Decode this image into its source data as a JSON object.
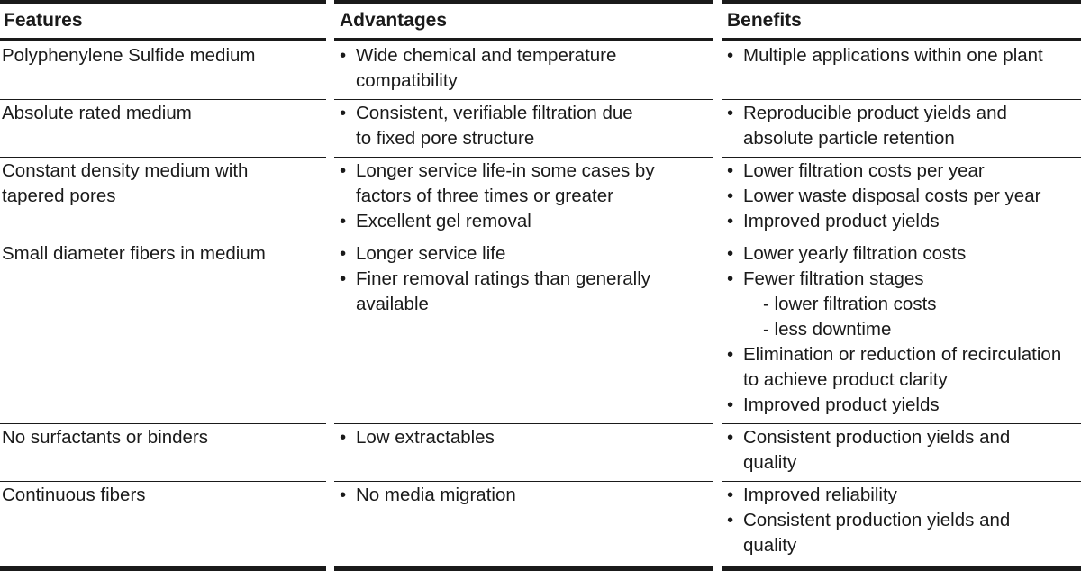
{
  "headers": {
    "features": "Features",
    "advantages": "Advantages",
    "benefits": "Benefits"
  },
  "rows": [
    {
      "feature": [
        "Polyphenylene Sulfide medium"
      ],
      "advantages": [
        [
          "Wide chemical and temperature",
          "compatibility"
        ]
      ],
      "benefits": [
        [
          "Multiple applications within one plant"
        ]
      ]
    },
    {
      "feature": [
        "Absolute rated medium"
      ],
      "advantages": [
        [
          "Consistent, verifiable filtration due",
          "to fixed pore structure"
        ]
      ],
      "benefits": [
        [
          "Reproducible product yields and",
          "absolute particle retention"
        ]
      ]
    },
    {
      "feature": [
        "Constant density medium with",
        "tapered pores"
      ],
      "advantages": [
        [
          "Longer service life-in some cases by",
          "factors of three times or greater"
        ],
        [
          "Excellent gel removal"
        ]
      ],
      "benefits": [
        [
          "Lower filtration costs per year"
        ],
        [
          "Lower waste disposal costs per year"
        ],
        [
          "Improved product yields"
        ]
      ]
    },
    {
      "feature": [
        "Small diameter fibers in medium"
      ],
      "advantages": [
        [
          "Longer service life"
        ],
        [
          "Finer removal ratings than generally",
          "available"
        ]
      ],
      "benefits": [
        [
          "Lower yearly filtration costs"
        ],
        [
          "Fewer filtration stages"
        ],
        [
          "Elimination or reduction of recirculation",
          "to achieve product clarity"
        ],
        [
          "Improved product yields"
        ]
      ],
      "benefit_subitems": [
        "- lower filtration costs",
        "- less downtime"
      ]
    },
    {
      "feature": [
        "No surfactants or binders"
      ],
      "advantages": [
        [
          "Low extractables"
        ]
      ],
      "benefits": [
        [
          "Consistent production yields and",
          "quality"
        ]
      ]
    },
    {
      "feature": [
        "Continuous fibers"
      ],
      "advantages": [
        [
          "No media migration"
        ]
      ],
      "benefits": [
        [
          "Improved reliability"
        ],
        [
          "Consistent production yields and",
          "quality"
        ]
      ]
    }
  ]
}
